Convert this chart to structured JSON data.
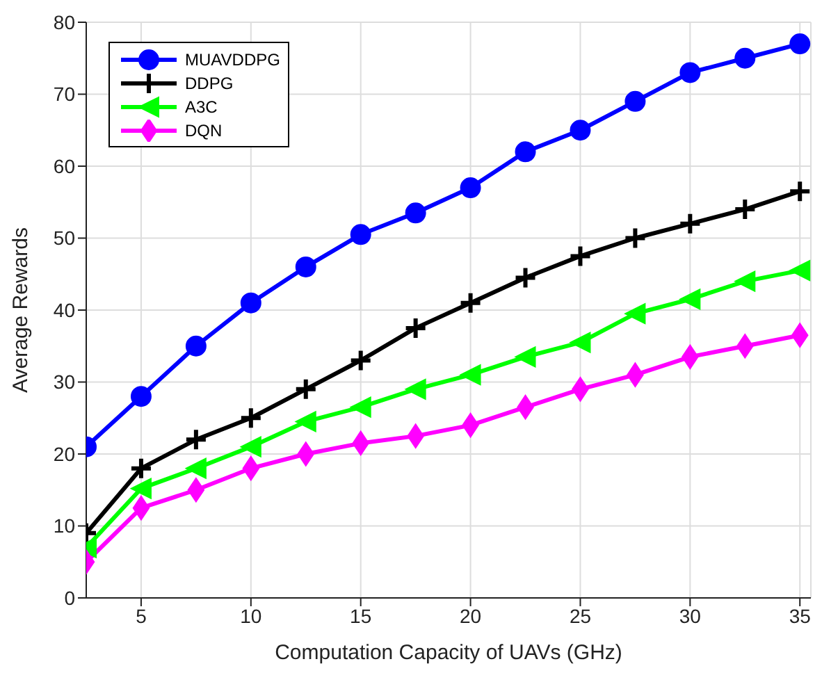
{
  "chart_data": {
    "type": "line",
    "xlabel": "Computation Capacity of UAVs (GHz)",
    "ylabel": "Average Rewards",
    "x": [
      2.5,
      5,
      7.5,
      10,
      12.5,
      15,
      17.5,
      20,
      22.5,
      25,
      27.5,
      30,
      32.5,
      35
    ],
    "series": [
      {
        "name": "MUAVDDPG",
        "color": "#0000ff",
        "marker": "circle",
        "values": [
          21,
          28,
          35,
          41,
          46,
          50.5,
          53.5,
          57,
          62,
          65,
          69,
          73,
          75,
          77
        ]
      },
      {
        "name": "DDPG",
        "color": "#000000",
        "marker": "cross",
        "values": [
          9,
          18,
          22,
          25,
          29,
          33,
          37.5,
          41,
          44.5,
          47.5,
          50,
          52,
          54,
          56.5
        ]
      },
      {
        "name": "A3C",
        "color": "#00ff00",
        "marker": "triangle",
        "values": [
          7,
          15.2,
          18,
          21,
          24.5,
          26.5,
          29,
          31,
          33.5,
          35.5,
          39.5,
          41.5,
          44,
          45.5
        ]
      },
      {
        "name": "DQN",
        "color": "#ff00ff",
        "marker": "diamond",
        "values": [
          5,
          12.5,
          15,
          18,
          20,
          21.5,
          22.5,
          24,
          26.5,
          29,
          31,
          33.5,
          35,
          36.5
        ]
      }
    ],
    "xlim": [
      2.5,
      35.5
    ],
    "xticks": [
      5,
      10,
      15,
      20,
      25,
      30,
      35
    ],
    "ylim": [
      0,
      80
    ],
    "yticks": [
      0,
      10,
      20,
      30,
      40,
      50,
      60,
      70,
      80
    ],
    "grid": true,
    "legend": "top left",
    "line_style": "solid"
  }
}
